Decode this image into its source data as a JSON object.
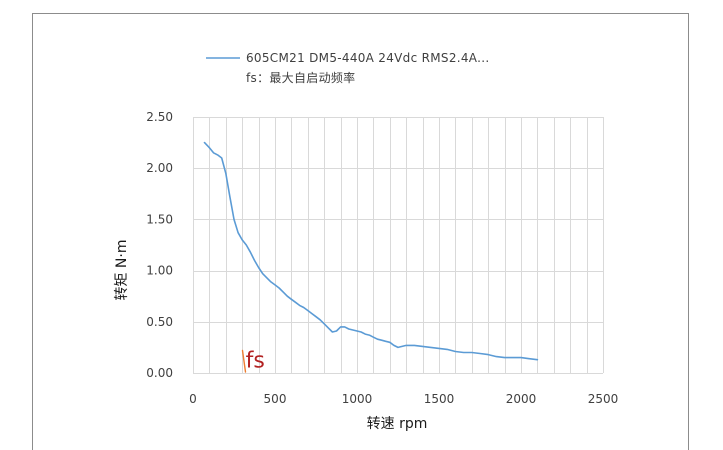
{
  "chart_data": {
    "type": "line",
    "title": "",
    "xlabel": "转速 rpm",
    "ylabel": "转矩  N·m",
    "xlim": [
      0,
      2500
    ],
    "ylim": [
      0,
      2.5
    ],
    "x_ticks": [
      "0",
      "500",
      "1000",
      "1500",
      "2000",
      "2500"
    ],
    "y_ticks": [
      "0.00",
      "0.50",
      "1.00",
      "1.50",
      "2.00",
      "2.50"
    ],
    "grid": true,
    "legend": {
      "position": "top",
      "entries": [
        "605CM21 DM5-440A 24Vdc RMS2.4A...",
        "fs：最大自启动频率"
      ]
    },
    "series": [
      {
        "name": "605CM21 DM5-440A 24Vdc RMS2.4A...",
        "color": "#5b9bd5",
        "x": [
          70,
          100,
          125,
          150,
          175,
          200,
          225,
          250,
          275,
          300,
          325,
          350,
          375,
          400,
          425,
          450,
          475,
          500,
          525,
          550,
          575,
          600,
          625,
          650,
          675,
          700,
          725,
          750,
          775,
          800,
          825,
          850,
          875,
          900,
          925,
          950,
          975,
          1000,
          1025,
          1050,
          1075,
          1100,
          1125,
          1150,
          1175,
          1200,
          1225,
          1250,
          1275,
          1300,
          1350,
          1400,
          1450,
          1500,
          1550,
          1600,
          1650,
          1700,
          1750,
          1800,
          1850,
          1900,
          1950,
          2000,
          2050,
          2100
        ],
        "values": [
          2.25,
          2.2,
          2.15,
          2.13,
          2.1,
          1.95,
          1.72,
          1.5,
          1.37,
          1.3,
          1.25,
          1.18,
          1.1,
          1.03,
          0.97,
          0.93,
          0.89,
          0.86,
          0.83,
          0.79,
          0.75,
          0.72,
          0.69,
          0.66,
          0.64,
          0.61,
          0.58,
          0.55,
          0.52,
          0.48,
          0.44,
          0.4,
          0.41,
          0.45,
          0.45,
          0.43,
          0.42,
          0.41,
          0.4,
          0.38,
          0.37,
          0.35,
          0.33,
          0.32,
          0.31,
          0.3,
          0.27,
          0.25,
          0.26,
          0.27,
          0.27,
          0.26,
          0.25,
          0.24,
          0.23,
          0.21,
          0.2,
          0.2,
          0.19,
          0.18,
          0.16,
          0.15,
          0.15,
          0.15,
          0.14,
          0.13
        ]
      },
      {
        "name": "fs",
        "color": "#ed7d31",
        "x": [
          302,
          320
        ],
        "values": [
          0.22,
          0.01
        ]
      }
    ],
    "annotations": [
      {
        "text": "fs",
        "x": 400,
        "y": 0.12,
        "color": "#b22222"
      }
    ]
  }
}
